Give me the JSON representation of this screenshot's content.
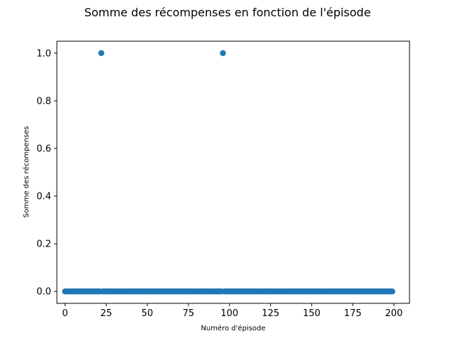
{
  "chart_data": {
    "type": "scatter",
    "title": "Somme des récompenses en fonction de l'épisode",
    "xlabel": "Numéro d'épisode",
    "ylabel": "Somme des récompenses",
    "xlim": [
      -5,
      209.5
    ],
    "ylim": [
      -0.05,
      1.05
    ],
    "xticks": [
      0,
      25,
      50,
      75,
      100,
      125,
      150,
      175,
      200
    ],
    "yticks": [
      0.0,
      0.2,
      0.4,
      0.6,
      0.8,
      1.0
    ],
    "xtick_labels": [
      "0",
      "25",
      "50",
      "75",
      "100",
      "125",
      "150",
      "175",
      "200"
    ],
    "ytick_labels": [
      "0.0",
      "0.2",
      "0.4",
      "0.6",
      "0.8",
      "1.0"
    ],
    "grid": false,
    "legend": "none",
    "marker_color": "#1f77b4",
    "episodes_start": 0,
    "episodes_end": 199,
    "default_value": 0,
    "highlighted_points": [
      {
        "x": 22,
        "y": 1.0
      },
      {
        "x": 96,
        "y": 1.0
      }
    ]
  }
}
